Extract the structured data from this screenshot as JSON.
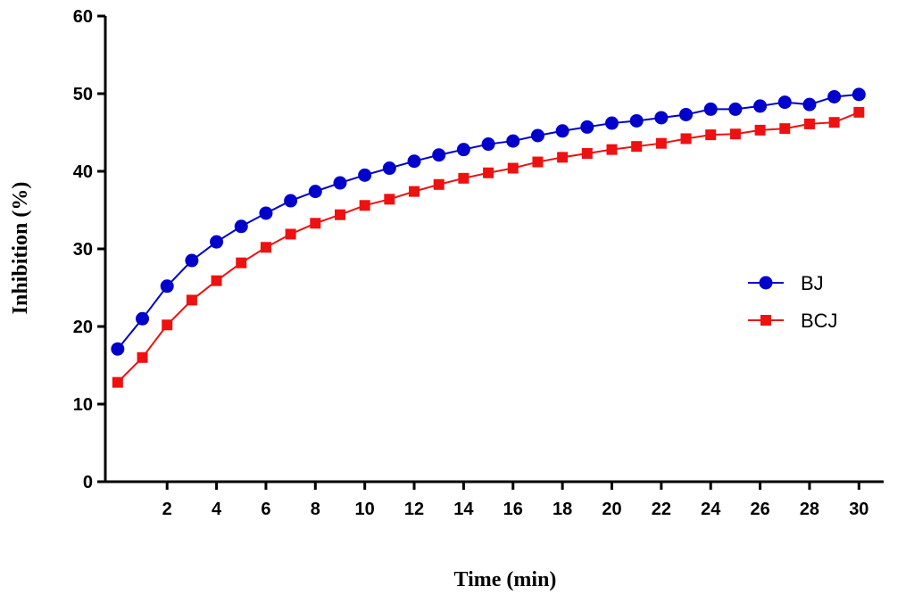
{
  "chart_data": {
    "type": "line",
    "xlabel": "Time (min)",
    "ylabel": "Inhibition (%)",
    "xlim": [
      -0.5,
      31
    ],
    "ylim": [
      0,
      60
    ],
    "x_ticks": [
      2,
      4,
      6,
      8,
      10,
      12,
      14,
      16,
      18,
      20,
      22,
      24,
      26,
      28,
      30
    ],
    "y_ticks": [
      0,
      10,
      20,
      30,
      40,
      50,
      60
    ],
    "legend_position": "right",
    "x": [
      0,
      1,
      2,
      3,
      4,
      5,
      6,
      7,
      8,
      9,
      10,
      11,
      12,
      13,
      14,
      15,
      16,
      17,
      18,
      19,
      20,
      21,
      22,
      23,
      24,
      25,
      26,
      27,
      28,
      29,
      30
    ],
    "series": [
      {
        "name": "BJ",
        "color": "#0000cc",
        "marker": "circle",
        "values": [
          17.1,
          21.0,
          25.2,
          28.5,
          30.9,
          32.9,
          34.6,
          36.2,
          37.4,
          38.5,
          39.5,
          40.4,
          41.3,
          42.1,
          42.8,
          43.5,
          43.9,
          44.6,
          45.2,
          45.7,
          46.2,
          46.5,
          46.9,
          47.3,
          48.0,
          48.0,
          48.4,
          48.9,
          48.6,
          49.6,
          49.9
        ]
      },
      {
        "name": "BCJ",
        "color": "#ee1111",
        "marker": "square",
        "values": [
          12.8,
          16.0,
          20.2,
          23.4,
          25.9,
          28.2,
          30.2,
          31.9,
          33.3,
          34.4,
          35.6,
          36.4,
          37.4,
          38.3,
          39.1,
          39.8,
          40.4,
          41.2,
          41.8,
          42.3,
          42.8,
          43.2,
          43.6,
          44.2,
          44.7,
          44.8,
          45.3,
          45.5,
          46.1,
          46.3,
          47.6
        ]
      }
    ]
  }
}
